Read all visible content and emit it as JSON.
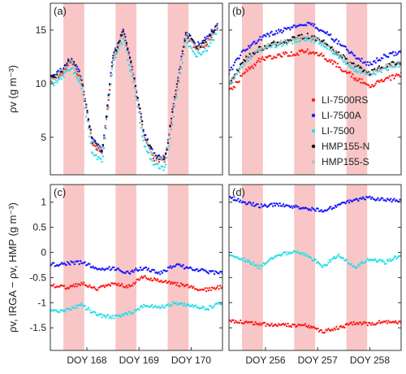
{
  "figure": {
    "colors": {
      "band": "#f8c6c6",
      "axis": "#333333",
      "LI-7500RS": "#ff1a1a",
      "LI-7500A": "#1a1aff",
      "LI-7500": "#22e0e8",
      "HMP155-N": "#111111",
      "HMP155-S": "#bfbfbf"
    }
  },
  "chart_data": [
    {
      "panel": "(a)",
      "type": "scatter",
      "xlabel": "",
      "ylabel": "ρv (g m⁻³)",
      "xticks": [],
      "xlim": [
        167.3,
        170.6
      ],
      "yticks": [
        5,
        10,
        15
      ],
      "ylim": [
        1.5,
        17.5
      ],
      "series": [
        {
          "name": "LI-7500RS",
          "x": [
            167.3,
            167.5,
            167.7,
            167.9,
            168.1,
            168.3,
            168.5,
            168.7,
            168.9,
            169.1,
            169.3,
            169.5,
            169.7,
            169.9,
            170.1,
            170.3,
            170.5
          ],
          "values": [
            10.3,
            10.8,
            12.2,
            10.2,
            4.5,
            3.5,
            12.3,
            14.8,
            10.5,
            5.0,
            3.0,
            2.8,
            9.0,
            14.5,
            13.2,
            13.8,
            15.2
          ]
        },
        {
          "name": "LI-7500A",
          "x": [
            167.3,
            167.5,
            167.7,
            167.9,
            168.1,
            168.3,
            168.5,
            168.7,
            168.9,
            169.1,
            169.3,
            169.5,
            169.7,
            169.9,
            170.1,
            170.3,
            170.5
          ],
          "values": [
            10.6,
            11.2,
            12.4,
            10.6,
            4.8,
            3.8,
            12.6,
            15.0,
            10.8,
            5.3,
            3.3,
            3.0,
            9.3,
            14.8,
            13.6,
            14.2,
            15.6
          ]
        },
        {
          "name": "LI-7500",
          "x": [
            167.3,
            167.5,
            167.7,
            167.9,
            168.1,
            168.3,
            168.5,
            168.7,
            168.9,
            169.1,
            169.3,
            169.5,
            169.7,
            169.9,
            170.1,
            170.3,
            170.5
          ],
          "values": [
            9.9,
            10.4,
            11.6,
            9.6,
            3.6,
            2.6,
            11.8,
            14.2,
            9.8,
            4.2,
            2.4,
            2.0,
            8.2,
            14.0,
            12.6,
            13.2,
            14.8
          ]
        },
        {
          "name": "HMP155-N",
          "x": [
            167.3,
            167.5,
            167.7,
            167.9,
            168.1,
            168.3,
            168.5,
            168.7,
            168.9,
            169.1,
            169.3,
            169.5,
            169.7,
            169.9,
            170.1,
            170.3,
            170.5
          ],
          "values": [
            10.5,
            11.0,
            12.3,
            10.4,
            4.7,
            3.7,
            12.5,
            14.9,
            10.7,
            5.2,
            3.2,
            2.9,
            9.2,
            14.7,
            13.4,
            14.0,
            15.4
          ]
        },
        {
          "name": "HMP155-S",
          "x": [
            167.3,
            167.5,
            167.7,
            167.9,
            168.1,
            168.3,
            168.5,
            168.7,
            168.9,
            169.1,
            169.3,
            169.5,
            169.7,
            169.9,
            170.1,
            170.3,
            170.5
          ],
          "values": [
            10.4,
            10.9,
            12.2,
            10.3,
            4.6,
            3.6,
            12.4,
            14.8,
            10.6,
            5.1,
            3.1,
            2.8,
            9.1,
            14.6,
            13.3,
            13.9,
            15.3
          ]
        }
      ]
    },
    {
      "panel": "(b)",
      "type": "scatter",
      "xlabel": "",
      "ylabel": "",
      "xticks": [],
      "xlim": [
        255.3,
        258.6
      ],
      "yticks": [
        5,
        10,
        15
      ],
      "ylim": [
        1.5,
        17.5
      ],
      "legend": "right",
      "series": [
        {
          "name": "LI-7500RS",
          "x": [
            255.3,
            255.6,
            255.9,
            256.2,
            256.5,
            256.8,
            257.1,
            257.4,
            257.7,
            258.0,
            258.3,
            258.6
          ],
          "values": [
            9.2,
            11.0,
            12.2,
            12.6,
            12.8,
            13.0,
            12.6,
            11.6,
            10.6,
            9.8,
            10.4,
            10.8
          ]
        },
        {
          "name": "LI-7500A",
          "x": [
            255.3,
            255.6,
            255.9,
            256.2,
            256.5,
            256.8,
            257.1,
            257.4,
            257.7,
            258.0,
            258.3,
            258.6
          ],
          "values": [
            11.0,
            13.2,
            14.2,
            14.8,
            15.2,
            15.6,
            15.0,
            13.8,
            12.6,
            11.8,
            12.6,
            13.0
          ]
        },
        {
          "name": "LI-7500",
          "x": [
            255.3,
            255.6,
            255.9,
            256.2,
            256.5,
            256.8,
            257.1,
            257.4,
            257.7,
            258.0,
            258.3,
            258.6
          ],
          "values": [
            9.8,
            12.0,
            13.2,
            13.6,
            13.9,
            14.2,
            13.7,
            12.6,
            11.4,
            10.8,
            11.4,
            11.8
          ]
        },
        {
          "name": "HMP155-N",
          "x": [
            255.3,
            255.6,
            255.9,
            256.2,
            256.5,
            256.8,
            257.1,
            257.4,
            257.7,
            258.0,
            258.3,
            258.6
          ],
          "values": [
            10.0,
            12.2,
            13.3,
            13.8,
            14.1,
            14.5,
            14.0,
            12.8,
            11.7,
            11.0,
            11.7,
            12.0
          ]
        },
        {
          "name": "HMP155-S",
          "x": [
            255.3,
            255.6,
            255.9,
            256.2,
            256.5,
            256.8,
            257.1,
            257.4,
            257.7,
            258.0,
            258.3,
            258.6
          ],
          "values": [
            9.9,
            12.1,
            13.2,
            13.7,
            14.0,
            14.4,
            13.9,
            12.7,
            11.6,
            10.9,
            11.6,
            11.9
          ]
        }
      ]
    },
    {
      "panel": "(c)",
      "type": "scatter",
      "xlabel": "",
      "ylabel": "ρv, IRGA − ρv, HMP (g m⁻³)",
      "xticks": [
        "DOY 168",
        "DOY 169",
        "DOY 170"
      ],
      "xtick_values": [
        168,
        169,
        170
      ],
      "xlim": [
        167.3,
        170.6
      ],
      "yticks": [
        -1.5,
        -1,
        -0.5,
        0,
        0.5,
        1
      ],
      "ylim": [
        -1.95,
        1.35
      ],
      "series": [
        {
          "name": "LI-7500RS",
          "x": [
            167.3,
            167.6,
            167.9,
            168.2,
            168.5,
            168.8,
            169.1,
            169.4,
            169.7,
            170.0,
            170.3,
            170.6
          ],
          "values": [
            -0.65,
            -0.7,
            -0.62,
            -0.72,
            -0.62,
            -0.68,
            -0.48,
            -0.58,
            -0.62,
            -0.7,
            -0.75,
            -0.68
          ]
        },
        {
          "name": "LI-7500A",
          "x": [
            167.3,
            167.6,
            167.9,
            168.2,
            168.5,
            168.8,
            169.1,
            169.4,
            169.7,
            170.0,
            170.3,
            170.6
          ],
          "values": [
            -0.25,
            -0.22,
            -0.2,
            -0.32,
            -0.32,
            -0.4,
            -0.3,
            -0.42,
            -0.25,
            -0.32,
            -0.38,
            -0.42
          ]
        },
        {
          "name": "LI-7500",
          "x": [
            167.3,
            167.6,
            167.9,
            168.2,
            168.5,
            168.8,
            169.1,
            169.4,
            169.7,
            170.0,
            170.3,
            170.6
          ],
          "values": [
            -1.18,
            -1.15,
            -1.05,
            -1.25,
            -1.28,
            -1.22,
            -1.05,
            -1.1,
            -1.0,
            -1.05,
            -1.12,
            -1.0
          ]
        }
      ]
    },
    {
      "panel": "(d)",
      "type": "scatter",
      "xlabel": "",
      "ylabel": "",
      "xticks": [
        "DOY 256",
        "DOY 257",
        "DOY 258"
      ],
      "xtick_values": [
        256,
        257,
        258
      ],
      "xlim": [
        255.3,
        258.6
      ],
      "yticks": [
        -1.5,
        -1,
        -0.5,
        0,
        0.5,
        1
      ],
      "ylim": [
        -1.95,
        1.35
      ],
      "series": [
        {
          "name": "LI-7500RS",
          "x": [
            255.3,
            255.6,
            255.9,
            256.2,
            256.5,
            256.8,
            257.1,
            257.4,
            257.7,
            258.0,
            258.3,
            258.6
          ],
          "values": [
            -1.35,
            -1.4,
            -1.42,
            -1.45,
            -1.45,
            -1.45,
            -1.58,
            -1.5,
            -1.4,
            -1.42,
            -1.38,
            -1.38
          ]
        },
        {
          "name": "LI-7500A",
          "x": [
            255.3,
            255.6,
            255.9,
            256.2,
            256.5,
            256.8,
            257.1,
            257.4,
            257.7,
            258.0,
            258.3,
            258.6
          ],
          "values": [
            1.1,
            1.0,
            0.92,
            0.95,
            0.92,
            0.88,
            0.82,
            0.95,
            1.05,
            1.08,
            1.05,
            1.02
          ]
        },
        {
          "name": "LI-7500",
          "x": [
            255.3,
            255.6,
            255.9,
            256.2,
            256.5,
            256.8,
            257.1,
            257.4,
            257.7,
            258.0,
            258.3,
            258.6
          ],
          "values": [
            -0.02,
            -0.15,
            -0.3,
            -0.05,
            0.0,
            -0.05,
            -0.28,
            -0.05,
            -0.3,
            -0.12,
            -0.2,
            -0.05
          ]
        }
      ]
    }
  ]
}
